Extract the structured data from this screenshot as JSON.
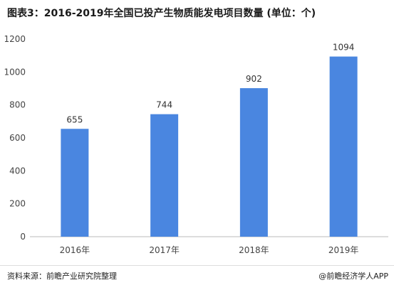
{
  "chart_data": {
    "type": "bar",
    "title": "图表3：2016-2019年全国已投产生物质能发电项目数量 (单位：个)",
    "categories": [
      "2016年",
      "2017年",
      "2018年",
      "2019年"
    ],
    "values": [
      655,
      744,
      902,
      1094
    ],
    "data_labels": [
      "655",
      "744",
      "902",
      "1094"
    ],
    "ylim": [
      0,
      1200
    ],
    "yticks": [
      "0",
      "200",
      "400",
      "600",
      "800",
      "1000",
      "1200"
    ],
    "ytick_values": [
      0,
      200,
      400,
      600,
      800,
      1000,
      1200
    ],
    "xlabel": "",
    "ylabel": "",
    "grid": false,
    "bar_color": "#4a86e0"
  },
  "footer": {
    "source": "资料来源：前瞻产业研究院整理",
    "brand": "@前瞻经济学人APP"
  }
}
